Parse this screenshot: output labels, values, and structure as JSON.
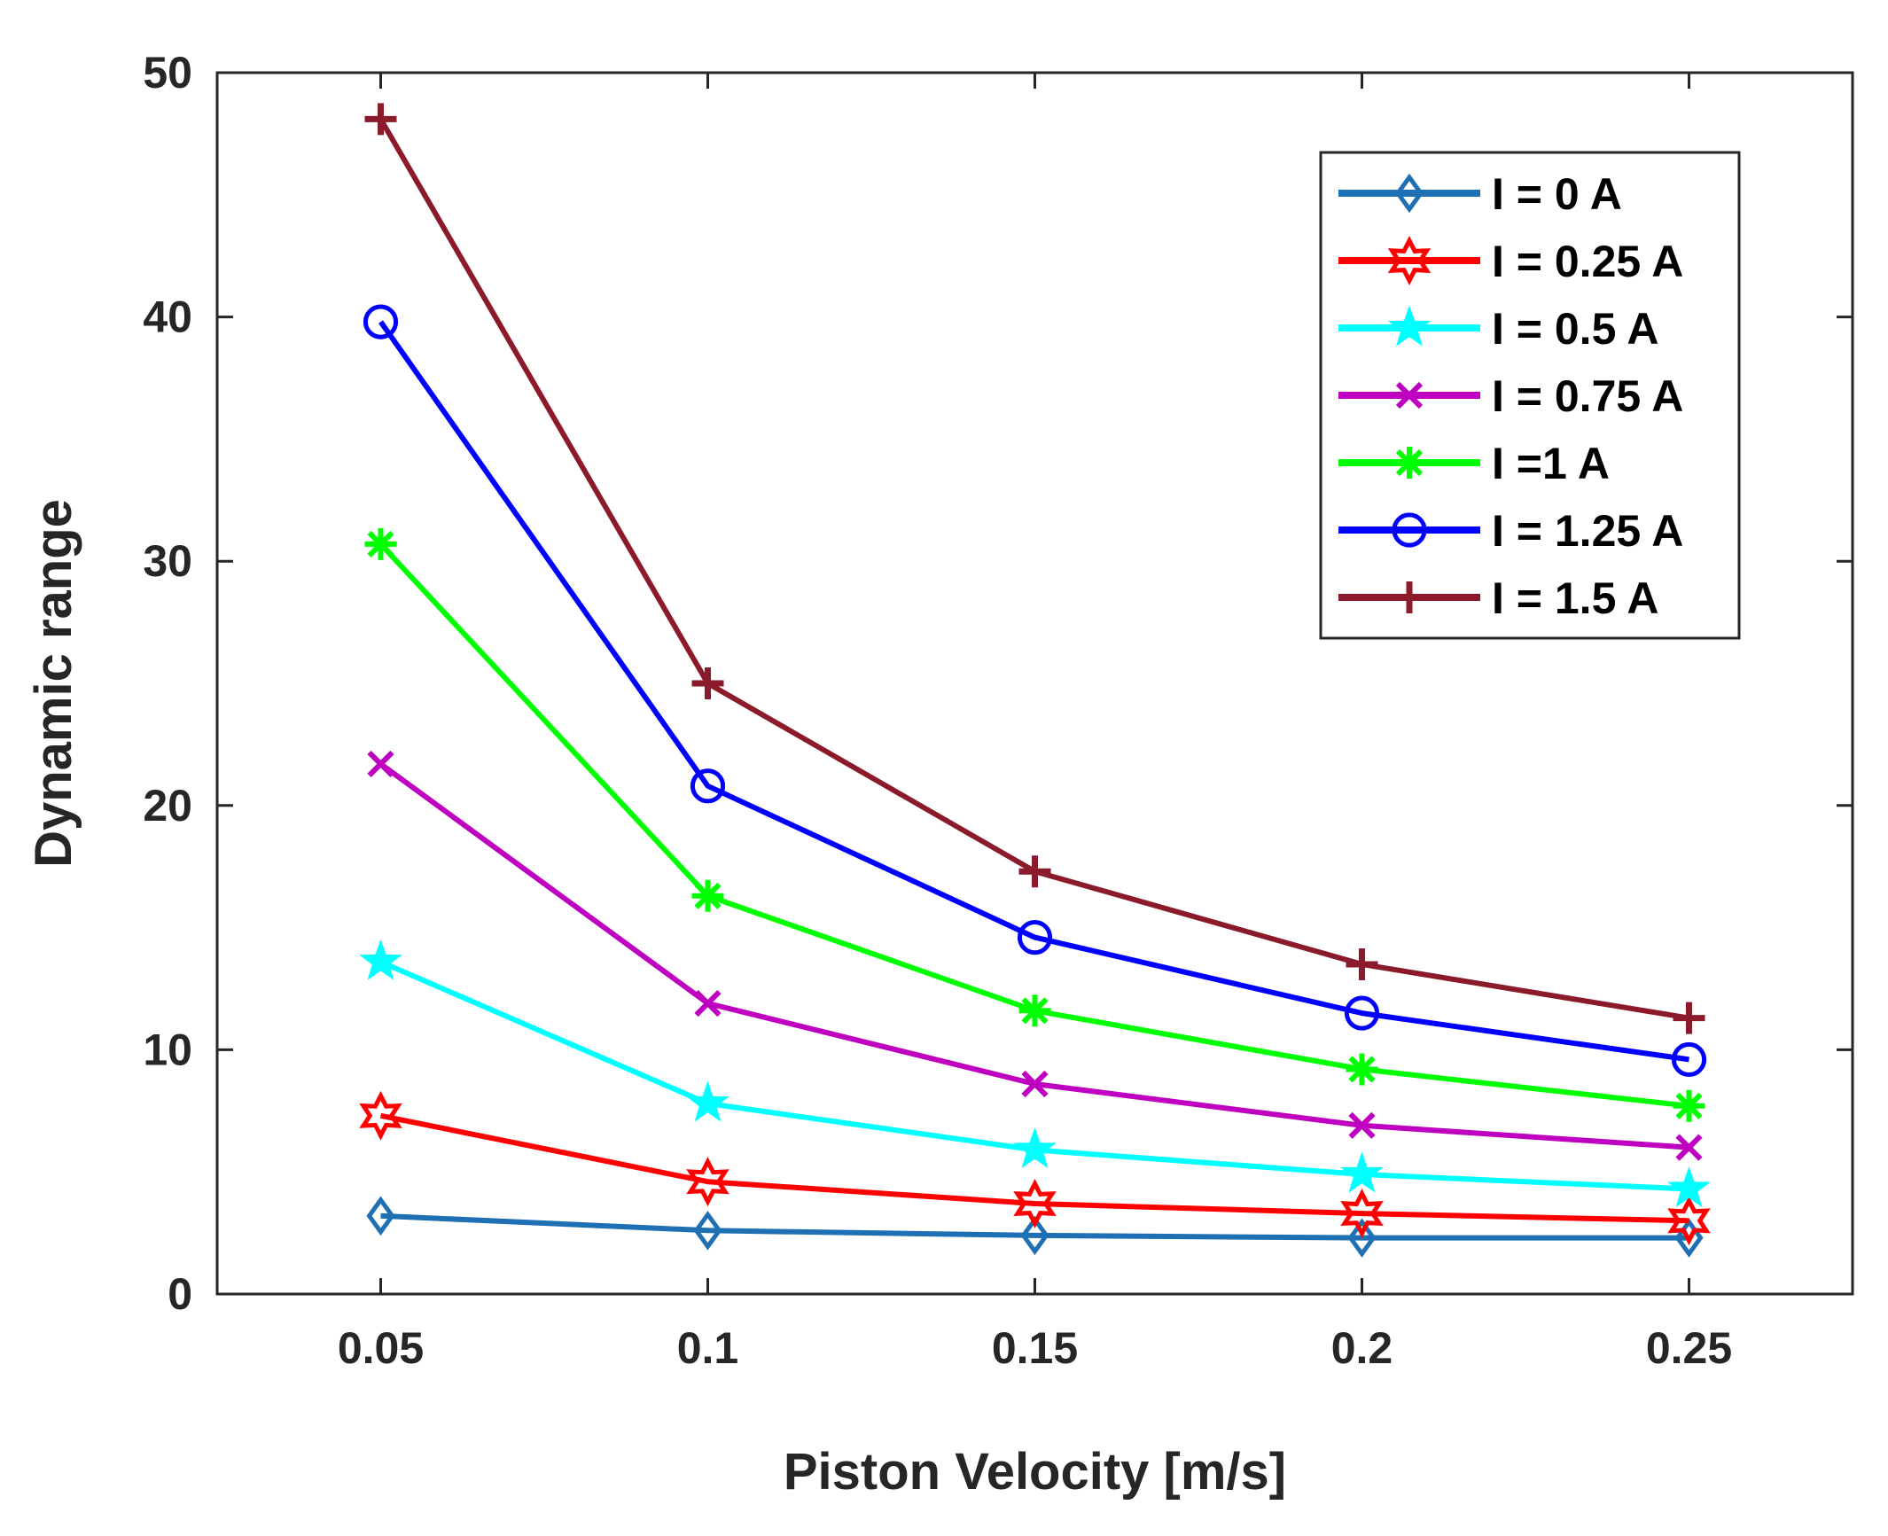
{
  "chart_data": {
    "type": "line",
    "title": "",
    "xlabel": "Piston Velocity [m/s]",
    "ylabel": "Dynamic range",
    "xlim": [
      0.025,
      0.275
    ],
    "ylim": [
      0,
      50
    ],
    "x": [
      0.05,
      0.1,
      0.15,
      0.2,
      0.25
    ],
    "x_tick_labels": [
      "0.05",
      "0.1",
      "0.15",
      "0.2",
      "0.25"
    ],
    "y_ticks": [
      0,
      10,
      20,
      30,
      40,
      50
    ],
    "y_tick_labels": [
      "0",
      "10",
      "20",
      "30",
      "40",
      "50"
    ],
    "grid": false,
    "legend_position": "top-right",
    "series": [
      {
        "name": "I = 0 A",
        "color": "#1f6fb4",
        "marker": "diamond",
        "values": [
          3.2,
          2.6,
          2.4,
          2.3,
          2.3
        ]
      },
      {
        "name": "I = 0.25 A",
        "color": "#ff0000",
        "marker": "hexagram",
        "values": [
          7.3,
          4.6,
          3.7,
          3.3,
          3.0
        ]
      },
      {
        "name": "I = 0.5 A",
        "color": "#00ffff",
        "marker": "pentagram",
        "values": [
          13.6,
          7.8,
          5.9,
          4.9,
          4.3
        ]
      },
      {
        "name": "I = 0.75 A",
        "color": "#c000c0",
        "marker": "x",
        "values": [
          21.7,
          11.9,
          8.6,
          6.9,
          6.0
        ]
      },
      {
        "name": "I =1 A",
        "color": "#00ff00",
        "marker": "asterisk",
        "values": [
          30.7,
          16.3,
          11.6,
          9.2,
          7.7
        ]
      },
      {
        "name": "I = 1.25 A",
        "color": "#0000ff",
        "marker": "circle",
        "values": [
          39.8,
          20.8,
          14.6,
          11.5,
          9.6
        ]
      },
      {
        "name": "I = 1.5 A",
        "color": "#8b1a2b",
        "marker": "plus",
        "values": [
          48.1,
          25.0,
          17.3,
          13.5,
          11.3
        ]
      }
    ]
  }
}
